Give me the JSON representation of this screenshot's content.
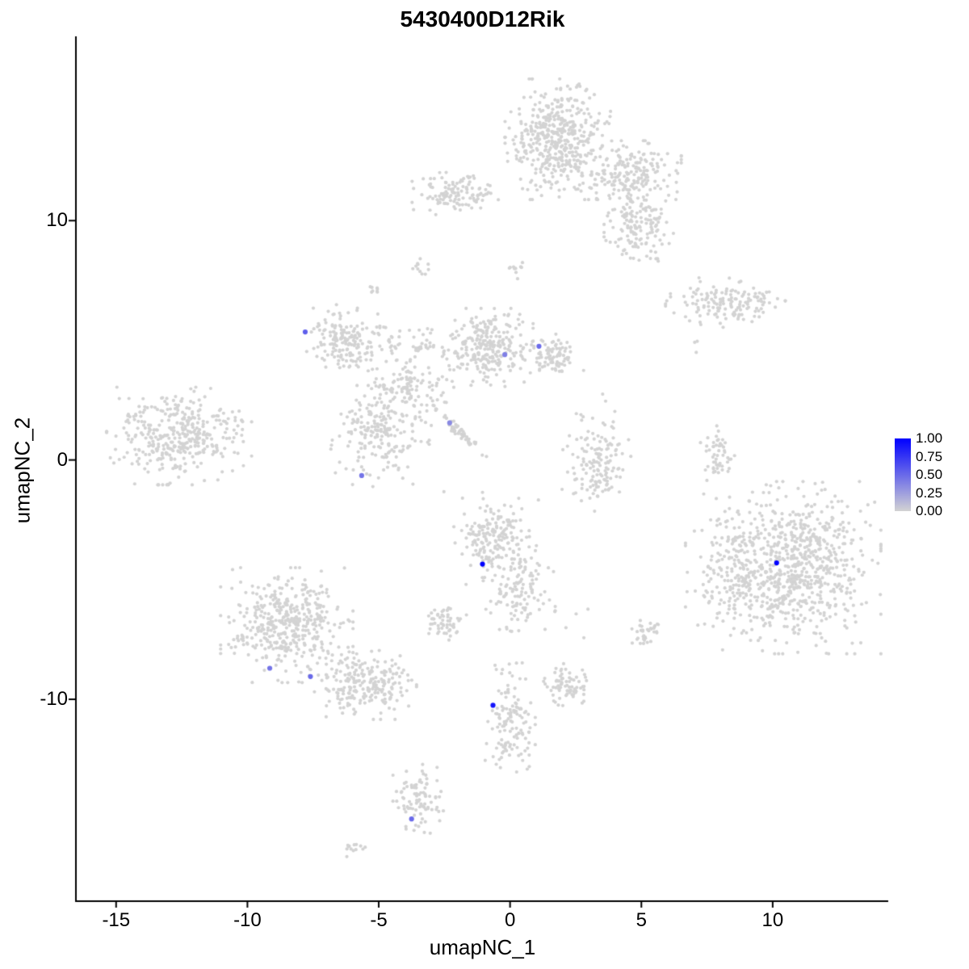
{
  "title": "5430400D12Rik",
  "chart_data": {
    "type": "scatter",
    "title": "5430400D12Rik",
    "xlabel": "umapNC_1",
    "ylabel": "umapNC_2",
    "xlim": [
      -16.5,
      14.4
    ],
    "ylim": [
      -18.4,
      17.7
    ],
    "x_ticks": [
      -15,
      -10,
      -5,
      0,
      5,
      10
    ],
    "y_ticks": [
      -10,
      0,
      10
    ],
    "grid": false,
    "legend_position": "right",
    "background_point_color": "#D3D3D3",
    "colorbar": {
      "labels": [
        "1.00",
        "0.75",
        "0.50",
        "0.25",
        "0.00"
      ],
      "values": [
        1.0,
        0.75,
        0.5,
        0.25,
        0.0
      ],
      "high": "#0000FF",
      "low": "#D3D3D3"
    },
    "cluster_format": [
      "center_x",
      "center_y",
      "sd_x",
      "sd_y",
      "n_points",
      "rotation_deg"
    ],
    "background_clusters": [
      [
        1.85,
        13.4,
        0.85,
        1.05,
        480
      ],
      [
        4.6,
        11.9,
        0.8,
        0.6,
        200
      ],
      [
        4.9,
        9.7,
        0.55,
        0.7,
        140
      ],
      [
        -2.05,
        11.15,
        0.7,
        0.42,
        120
      ],
      [
        8.2,
        6.6,
        0.95,
        0.45,
        150
      ],
      [
        -6.35,
        5.0,
        0.58,
        0.62,
        170
      ],
      [
        -0.85,
        4.7,
        0.72,
        0.68,
        260
      ],
      [
        1.6,
        4.25,
        0.5,
        0.42,
        90
      ],
      [
        -3.8,
        3.0,
        0.8,
        0.65,
        120
      ],
      [
        -3.8,
        4.9,
        0.75,
        0.4,
        50
      ],
      [
        -2.0,
        1.25,
        0.65,
        0.08,
        55,
        -46
      ],
      [
        -12.6,
        1.0,
        1.15,
        0.85,
        380
      ],
      [
        -4.95,
        1.0,
        0.78,
        0.88,
        200
      ],
      [
        3.3,
        -0.1,
        0.55,
        0.85,
        140
      ],
      [
        7.9,
        -0.1,
        0.27,
        0.65,
        55
      ],
      [
        -0.6,
        -3.4,
        0.7,
        0.75,
        190
      ],
      [
        0.4,
        -5.5,
        0.55,
        0.8,
        110
      ],
      [
        11.0,
        -4.5,
        1.3,
        1.5,
        700
      ],
      [
        8.6,
        -4.5,
        0.8,
        1.3,
        200
      ],
      [
        -8.5,
        -6.9,
        1.05,
        1.0,
        430
      ],
      [
        -5.6,
        -9.4,
        0.85,
        0.6,
        230
      ],
      [
        -2.5,
        -6.75,
        0.35,
        0.33,
        55
      ],
      [
        0.0,
        -11.0,
        0.4,
        1.05,
        130
      ],
      [
        2.2,
        -9.4,
        0.4,
        0.37,
        75
      ],
      [
        5.2,
        -7.3,
        0.27,
        0.27,
        35
      ],
      [
        -3.5,
        -14.2,
        0.4,
        0.62,
        90
      ],
      [
        -5.95,
        -16.2,
        0.19,
        0.16,
        13
      ],
      [
        -3.4,
        8.05,
        0.16,
        0.17,
        11
      ],
      [
        -5.2,
        7.1,
        0.14,
        0.13,
        8
      ],
      [
        0.4,
        8.1,
        0.25,
        0.22,
        10
      ],
      [
        7.2,
        4.8,
        0.3,
        0.25,
        3
      ],
      [
        3.1,
        2.0,
        0.5,
        0.45,
        7
      ],
      [
        2.0,
        -6.5,
        0.5,
        0.4,
        6
      ],
      [
        -1.5,
        -1.7,
        0.6,
        0.5,
        5
      ]
    ],
    "cell_format": [
      "x",
      "y",
      "expression"
    ],
    "expressing_cells": [
      [
        -7.8,
        5.35,
        0.55
      ],
      [
        -0.2,
        4.4,
        0.4
      ],
      [
        1.1,
        4.75,
        0.5
      ],
      [
        -2.3,
        1.55,
        0.35
      ],
      [
        -5.65,
        -0.65,
        0.45
      ],
      [
        -1.05,
        -4.35,
        1.0
      ],
      [
        10.15,
        -4.3,
        1.0
      ],
      [
        -9.15,
        -8.7,
        0.45
      ],
      [
        -7.6,
        -9.05,
        0.5
      ],
      [
        -0.65,
        -10.25,
        0.9
      ],
      [
        -3.75,
        -15.0,
        0.5
      ]
    ]
  }
}
